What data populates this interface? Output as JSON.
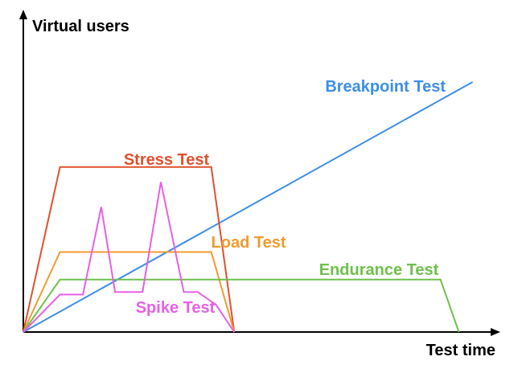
{
  "chart_data": {
    "type": "line",
    "xlabel": "Test time",
    "ylabel": "Virtual users",
    "xlim": [
      0,
      100
    ],
    "ylim": [
      0,
      100
    ],
    "grid": false,
    "legend": "none (series labelled inline)",
    "series": [
      {
        "name": "Breakpoint Test",
        "color": "#3d8ee6",
        "x": [
          0,
          98
        ],
        "y": [
          0,
          100
        ]
      },
      {
        "name": "Stress Test",
        "color": "#e0502d",
        "x": [
          0,
          8,
          41,
          46
        ],
        "y": [
          0,
          66,
          66,
          0
        ]
      },
      {
        "name": "Load Test",
        "color": "#f29a2e",
        "x": [
          0,
          8,
          41,
          46
        ],
        "y": [
          0,
          32,
          32,
          0
        ]
      },
      {
        "name": "Endurance Test",
        "color": "#6ec04c",
        "x": [
          0,
          8,
          91,
          95
        ],
        "y": [
          0,
          21,
          21,
          0
        ]
      },
      {
        "name": "Spike Test",
        "color": "#e660e6",
        "x": [
          0,
          8,
          13,
          17,
          20,
          26,
          30,
          35,
          38,
          42,
          46
        ],
        "y": [
          0,
          15,
          15,
          50,
          16,
          16,
          60,
          16,
          16,
          11,
          0
        ]
      }
    ]
  }
}
